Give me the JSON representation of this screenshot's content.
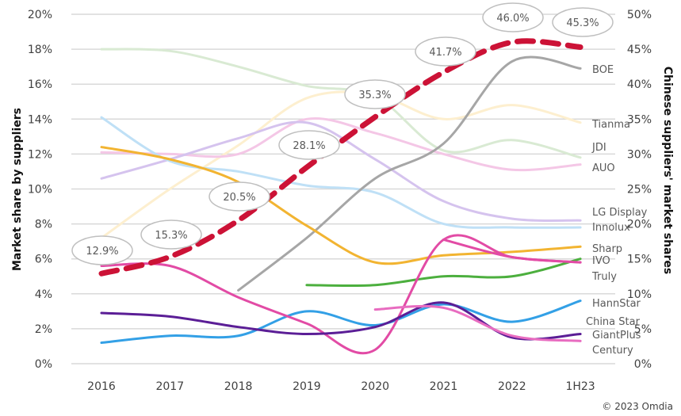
{
  "chart_data": {
    "type": "line",
    "title": "",
    "x": [
      "2016",
      "2017",
      "2018",
      "2019",
      "2020",
      "2021",
      "2022",
      "1H23"
    ],
    "ylabel": "Market share by suppliers",
    "y2label": "Chinese suppliers' market shares",
    "ylim": [
      0,
      20
    ],
    "y2lim": [
      0,
      50
    ],
    "yticks": [
      "0%",
      "2%",
      "4%",
      "6%",
      "8%",
      "10%",
      "12%",
      "14%",
      "16%",
      "18%",
      "20%"
    ],
    "y2ticks": [
      "0%",
      "5%",
      "10%",
      "15%",
      "20%",
      "25%",
      "30%",
      "35%",
      "40%",
      "45%",
      "50%"
    ],
    "grid": true,
    "series": [
      {
        "name": "JDI",
        "color": "#d9ead3",
        "axis": "left",
        "values": [
          18.0,
          17.9,
          17.0,
          15.9,
          15.3,
          12.2,
          12.8,
          11.8
        ]
      },
      {
        "name": "Tianma",
        "color": "#fdefcf",
        "axis": "left",
        "values": [
          7.2,
          10.0,
          12.5,
          15.2,
          15.4,
          14.0,
          14.8,
          13.8
        ]
      },
      {
        "name": "AUO",
        "color": "#f4c7e6",
        "axis": "left",
        "values": [
          12.1,
          12.0,
          12.0,
          14.0,
          13.2,
          12.0,
          11.1,
          11.4
        ]
      },
      {
        "name": "LG Display",
        "color": "#d5c3ee",
        "axis": "left",
        "values": [
          10.6,
          11.7,
          12.9,
          13.8,
          11.7,
          9.3,
          8.3,
          8.2
        ]
      },
      {
        "name": "Innolux",
        "color": "#bfe0f6",
        "axis": "left",
        "values": [
          14.1,
          11.6,
          11.0,
          10.2,
          9.8,
          8.0,
          7.8,
          7.8
        ]
      },
      {
        "name": "BOE",
        "color": "#a6a6a6",
        "axis": "left",
        "values": [
          null,
          null,
          4.2,
          7.2,
          10.6,
          12.6,
          17.3,
          16.9
        ]
      },
      {
        "name": "Sharp",
        "color": "#f2b431",
        "axis": "left",
        "values": [
          12.4,
          11.7,
          10.4,
          7.9,
          5.8,
          6.2,
          6.4,
          6.7
        ]
      },
      {
        "name": "IVO",
        "color": "#e24ba5",
        "axis": "left",
        "values": [
          null,
          null,
          null,
          null,
          null,
          7.1,
          6.1,
          5.8
        ]
      },
      {
        "name": "Truly",
        "color": "#4caf3e",
        "axis": "left",
        "values": [
          null,
          null,
          null,
          4.5,
          4.5,
          5.0,
          5.0,
          6.0
        ]
      },
      {
        "name": "HannStar",
        "color": "#33a0e6",
        "axis": "left",
        "values": [
          1.2,
          1.6,
          1.6,
          3.0,
          2.2,
          3.4,
          2.4,
          3.6
        ]
      },
      {
        "name": "China Star",
        "color": "#e24ba5",
        "axis": "left",
        "values": [
          5.6,
          5.6,
          3.8,
          2.3,
          0.8,
          7.1,
          6.1,
          5.8
        ]
      },
      {
        "name": "GiantPlus",
        "color": "#5b1e96",
        "axis": "left",
        "values": [
          2.9,
          2.7,
          2.1,
          1.7,
          2.1,
          3.5,
          1.5,
          1.7
        ]
      },
      {
        "name": "Century",
        "color": "#e86cc0",
        "axis": "left",
        "values": [
          null,
          null,
          null,
          null,
          3.1,
          3.2,
          1.6,
          1.3
        ]
      },
      {
        "name": "Chinese suppliers share",
        "color": "#cc1236",
        "axis": "right",
        "dashed": true,
        "values": [
          12.9,
          15.3,
          20.5,
          28.1,
          35.3,
          41.7,
          46.0,
          45.3
        ]
      }
    ],
    "callouts": [
      "12.9%",
      "15.3%",
      "20.5%",
      "28.1%",
      "35.3%",
      "41.7%",
      "46.0%",
      "45.3%"
    ],
    "legend_labels": [
      "BOE",
      "Tianma",
      "JDI",
      "AUO",
      "LG Display",
      "Innolux",
      "Sharp",
      "IVO",
      "Truly",
      "HannStar",
      "China Star",
      "GiantPlus",
      "Century"
    ],
    "legend": "right-inline",
    "credit": "© 2023 Omdia"
  }
}
